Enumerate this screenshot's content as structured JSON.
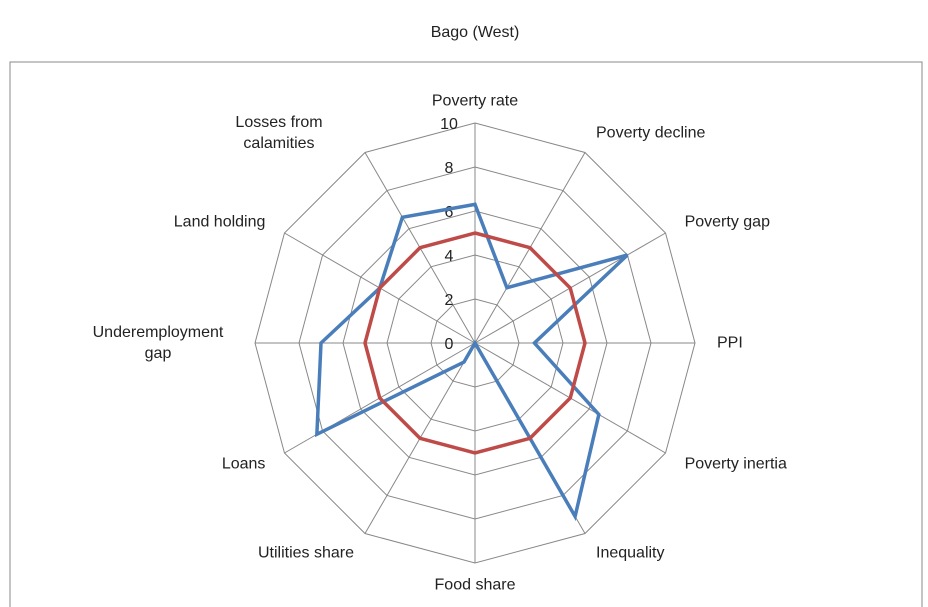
{
  "chart_data": {
    "type": "radar",
    "title": "Bago (West)",
    "categories": [
      "Poverty rate",
      "Poverty decline",
      "Poverty gap",
      "PPI",
      "Poverty inertia",
      "Inequality",
      "Food share",
      "Utilities share",
      "Loans",
      "Underemployment gap",
      "Land holding",
      "Losses from calamities"
    ],
    "series": [
      {
        "color": "#4a7ebb",
        "values": [
          6.3,
          2.9,
          8,
          2.7,
          6.5,
          9.1,
          0,
          1,
          8.3,
          7,
          5,
          6.6
        ]
      },
      {
        "color": "#be4b48",
        "values": [
          5,
          5,
          5,
          5,
          5,
          5,
          5,
          5,
          5,
          5,
          5,
          5
        ]
      }
    ],
    "ylim": [
      0,
      10
    ],
    "yticks": [
      0,
      2,
      4,
      6,
      8,
      10
    ],
    "grid": true
  }
}
